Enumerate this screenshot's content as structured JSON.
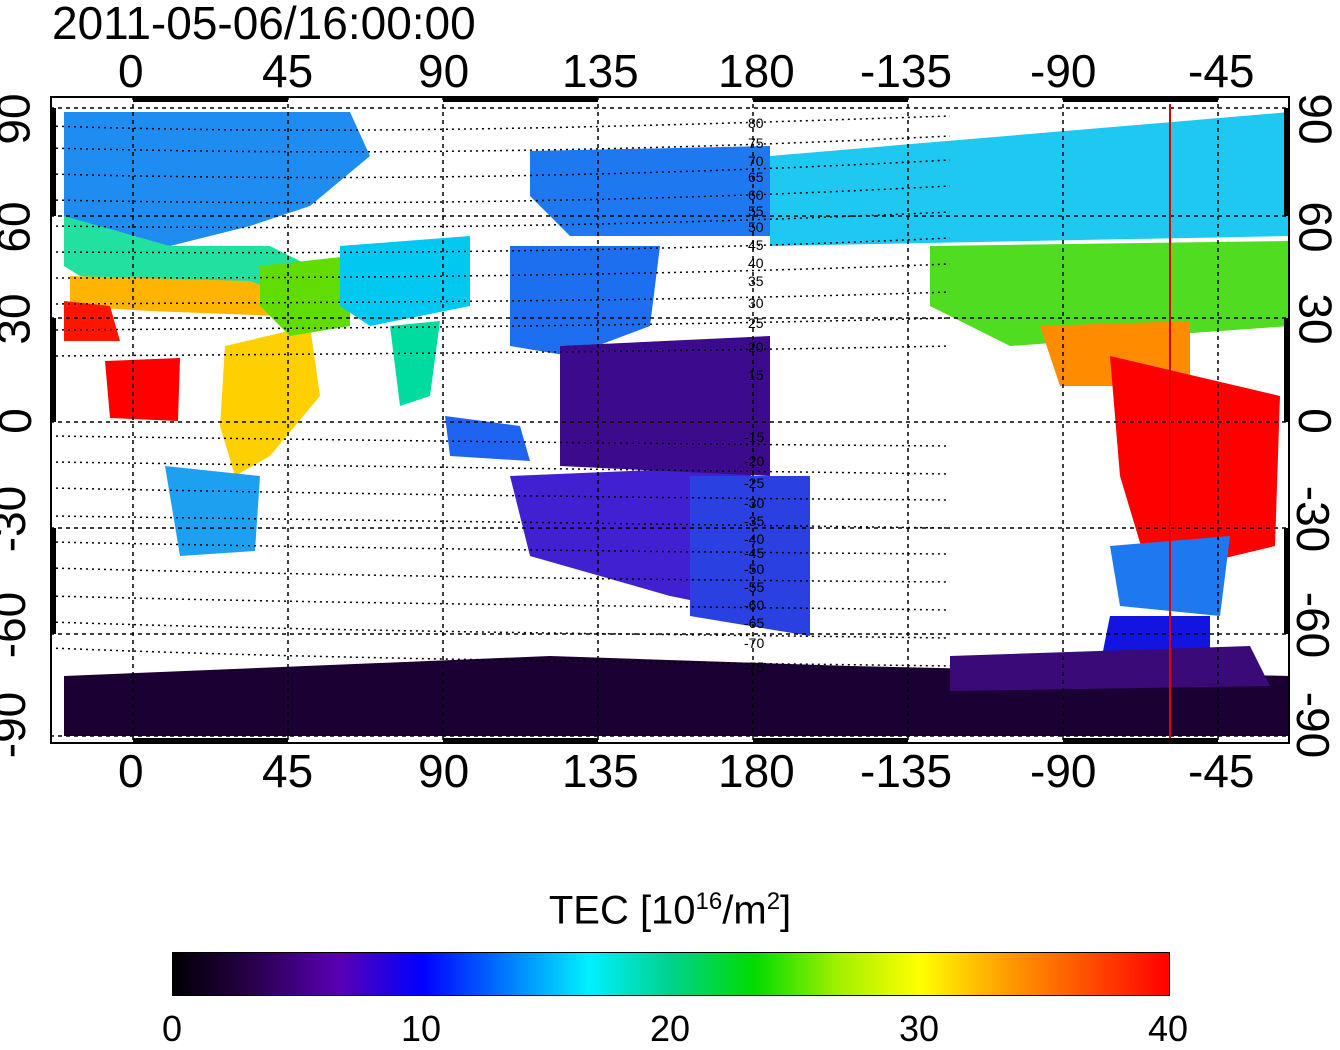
{
  "header": {
    "timestamp": "2011-05-06/16:00:00"
  },
  "map": {
    "lon_ticks": [
      "0",
      "45",
      "90",
      "135",
      "180",
      "-135",
      "-90",
      "-45"
    ],
    "lat_ticks": [
      "90",
      "60",
      "30",
      "0",
      "-30",
      "-60",
      "-90"
    ],
    "contour_labels_north": [
      "80",
      "75",
      "70",
      "65",
      "60",
      "55",
      "50",
      "45",
      "40",
      "35",
      "30",
      "25",
      "20",
      "15"
    ],
    "contour_labels_south": [
      "-15",
      "-20",
      "-25",
      "-30",
      "-35",
      "-40",
      "-45",
      "-50",
      "-55",
      "-60",
      "-65",
      "-70",
      "-75"
    ],
    "lon_range": [
      -20,
      340
    ],
    "lat_range": [
      -90,
      90
    ],
    "marker_line_color": "#e00000"
  },
  "colorbar": {
    "title_main": "TEC  [10",
    "title_sup": "16",
    "title_unit": "/m",
    "title_sup2": "2",
    "title_end": "]",
    "ticks": [
      "0",
      "10",
      "20",
      "30",
      "40"
    ],
    "range": [
      0,
      40
    ],
    "colors": [
      "#000000",
      "#2a0050",
      "#5a00b4",
      "#0000ff",
      "#0078ff",
      "#00f0ff",
      "#00d28c",
      "#00dc00",
      "#a0f000",
      "#ffff00",
      "#ffa000",
      "#ff5000",
      "#ff0000"
    ]
  }
}
